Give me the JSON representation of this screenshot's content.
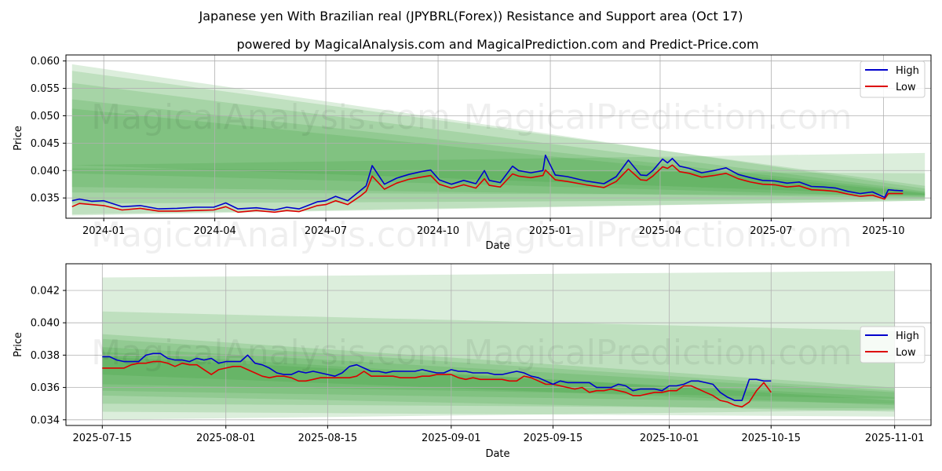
{
  "title": "Japanese yen With Brazilian real (JPYBRL(Forex)) Resistance and Support area (Oct 17)",
  "subtitle": "powered by MagicalAnalysis.com and MagicalPrediction.com and Predict-Price.com",
  "watermarks": [
    "MagicalAnalysis.com",
    "MagicalPrediction.com"
  ],
  "colors": {
    "high": "#0000cc",
    "low": "#dd0000",
    "band": "#2e9a2e"
  },
  "chart_data": [
    {
      "type": "line",
      "name": "full-history",
      "xlabel": "Date",
      "ylabel": "Price",
      "xlim_days": [
        -31,
        678
      ],
      "ylim": [
        0.0313,
        0.0611
      ],
      "x_ticks": [
        {
          "day": 0,
          "label": "2024-01"
        },
        {
          "day": 91,
          "label": "2024-04"
        },
        {
          "day": 182,
          "label": "2024-07"
        },
        {
          "day": 274,
          "label": "2024-10"
        },
        {
          "day": 366,
          "label": "2025-01"
        },
        {
          "day": 456,
          "label": "2025-04"
        },
        {
          "day": 547,
          "label": "2025-07"
        },
        {
          "day": 639,
          "label": "2025-10"
        }
      ],
      "y_ticks": [
        0.035,
        0.04,
        0.045,
        0.05,
        0.055,
        0.06
      ],
      "y_tick_labels": [
        "0.035",
        "0.040",
        "0.045",
        "0.050",
        "0.055",
        "0.060"
      ],
      "legend": [
        "High",
        "Low"
      ],
      "legend_position": "top-right",
      "series": [
        {
          "name": "High",
          "x": [
            -26,
            -20,
            -10,
            0,
            15,
            30,
            45,
            60,
            75,
            90,
            100,
            110,
            125,
            140,
            150,
            160,
            175,
            182,
            190,
            200,
            210,
            215,
            220,
            230,
            240,
            250,
            260,
            268,
            275,
            285,
            295,
            305,
            312,
            316,
            325,
            335,
            340,
            350,
            360,
            362,
            370,
            380,
            395,
            410,
            420,
            430,
            440,
            445,
            450,
            458,
            462,
            466,
            472,
            480,
            490,
            500,
            510,
            520,
            530,
            540,
            550,
            560,
            570,
            580,
            590,
            600,
            610,
            620,
            630,
            640,
            643,
            648,
            655
          ],
          "values": [
            0.0345,
            0.0348,
            0.0344,
            0.0345,
            0.0334,
            0.0336,
            0.033,
            0.0331,
            0.0333,
            0.0333,
            0.0341,
            0.033,
            0.0332,
            0.0328,
            0.0333,
            0.033,
            0.0343,
            0.0345,
            0.0353,
            0.0345,
            0.0363,
            0.0372,
            0.0409,
            0.0375,
            0.0386,
            0.0393,
            0.0398,
            0.0401,
            0.0383,
            0.0375,
            0.0382,
            0.0376,
            0.04,
            0.0382,
            0.0378,
            0.0408,
            0.04,
            0.0396,
            0.04,
            0.0428,
            0.0392,
            0.0389,
            0.0381,
            0.0376,
            0.0389,
            0.0419,
            0.0392,
            0.0391,
            0.04,
            0.0421,
            0.0414,
            0.0422,
            0.0408,
            0.0404,
            0.0396,
            0.04,
            0.0405,
            0.0393,
            0.0387,
            0.0382,
            0.0381,
            0.0377,
            0.0379,
            0.0371,
            0.037,
            0.0368,
            0.0362,
            0.0358,
            0.0361,
            0.0351,
            0.0365,
            0.0364,
            0.0363
          ]
        },
        {
          "name": "Low",
          "x": [
            -26,
            -20,
            -10,
            0,
            15,
            30,
            45,
            60,
            75,
            90,
            100,
            110,
            125,
            140,
            150,
            160,
            175,
            182,
            190,
            200,
            210,
            215,
            220,
            230,
            240,
            250,
            260,
            268,
            275,
            285,
            295,
            305,
            312,
            316,
            325,
            335,
            340,
            350,
            360,
            362,
            370,
            380,
            395,
            410,
            420,
            430,
            440,
            445,
            450,
            458,
            462,
            466,
            472,
            480,
            490,
            500,
            510,
            520,
            530,
            540,
            550,
            560,
            570,
            580,
            590,
            600,
            610,
            620,
            630,
            640,
            643,
            648,
            655
          ],
          "values": [
            0.0334,
            0.034,
            0.0338,
            0.0336,
            0.0328,
            0.0331,
            0.0326,
            0.0326,
            0.0327,
            0.0328,
            0.0334,
            0.0324,
            0.0327,
            0.0324,
            0.0327,
            0.0325,
            0.0336,
            0.0338,
            0.0345,
            0.0338,
            0.0353,
            0.0362,
            0.039,
            0.0366,
            0.0377,
            0.0384,
            0.0388,
            0.0391,
            0.0375,
            0.0368,
            0.0374,
            0.0368,
            0.0385,
            0.0373,
            0.037,
            0.0394,
            0.039,
            0.0387,
            0.0391,
            0.0401,
            0.0383,
            0.038,
            0.0374,
            0.0369,
            0.038,
            0.0403,
            0.0383,
            0.0382,
            0.039,
            0.0407,
            0.0404,
            0.041,
            0.0398,
            0.0395,
            0.0388,
            0.0391,
            0.0395,
            0.0385,
            0.0379,
            0.0375,
            0.0374,
            0.037,
            0.0372,
            0.0365,
            0.0364,
            0.0362,
            0.0357,
            0.0353,
            0.0355,
            0.0348,
            0.0358,
            0.0358,
            0.0358
          ]
        }
      ],
      "bands": [
        {
          "x": [
            -26,
            673
          ],
          "upper": [
            0.0594,
            0.0367
          ],
          "lower": [
            0.041,
            0.0355
          ]
        },
        {
          "x": [
            -26,
            673
          ],
          "upper": [
            0.0582,
            0.0372
          ],
          "lower": [
            0.037,
            0.035
          ]
        },
        {
          "x": [
            -26,
            673
          ],
          "upper": [
            0.056,
            0.0362
          ],
          "lower": [
            0.034,
            0.0347
          ]
        },
        {
          "x": [
            -26,
            673
          ],
          "upper": [
            0.053,
            0.036
          ],
          "lower": [
            0.032,
            0.0345
          ]
        },
        {
          "x": [
            -26,
            673
          ],
          "upper": [
            0.0513,
            0.0358
          ],
          "lower": [
            0.0395,
            0.0352
          ]
        },
        {
          "x": [
            -26,
            673
          ],
          "upper": [
            0.041,
            0.0432
          ],
          "lower": [
            0.0318,
            0.0345
          ]
        },
        {
          "x": [
            -26,
            673
          ],
          "upper": [
            0.0404,
            0.0395
          ],
          "lower": [
            0.036,
            0.0355
          ]
        }
      ]
    },
    {
      "type": "line",
      "name": "recent-zoom",
      "xlabel": "Date",
      "ylabel": "Price",
      "xlim_days": [
        -5,
        114
      ],
      "ylim": [
        0.03365,
        0.04365
      ],
      "x_ticks": [
        {
          "day": 0,
          "label": "2025-07-15"
        },
        {
          "day": 17,
          "label": "2025-08-01"
        },
        {
          "day": 31,
          "label": "2025-08-15"
        },
        {
          "day": 48,
          "label": "2025-09-01"
        },
        {
          "day": 62,
          "label": "2025-09-15"
        },
        {
          "day": 78,
          "label": "2025-10-01"
        },
        {
          "day": 92,
          "label": "2025-10-15"
        },
        {
          "day": 109,
          "label": "2025-11-01"
        }
      ],
      "y_ticks": [
        0.034,
        0.036,
        0.038,
        0.04,
        0.042
      ],
      "y_tick_labels": [
        "0.034",
        "0.036",
        "0.038",
        "0.040",
        "0.042"
      ],
      "legend": [
        "High",
        "Low"
      ],
      "legend_position": "center-right",
      "series": [
        {
          "name": "High",
          "x": [
            0,
            1,
            2,
            3,
            4,
            5,
            6,
            7,
            8,
            9,
            10,
            11,
            12,
            13,
            14,
            15,
            16,
            17,
            18,
            19,
            20,
            21,
            22,
            23,
            24,
            25,
            26,
            27,
            28,
            29,
            30,
            31,
            32,
            33,
            34,
            35,
            36,
            37,
            38,
            39,
            40,
            41,
            42,
            43,
            44,
            45,
            46,
            47,
            48,
            49,
            50,
            51,
            52,
            53,
            54,
            55,
            56,
            57,
            58,
            59,
            60,
            61,
            62,
            63,
            64,
            65,
            66,
            67,
            68,
            69,
            70,
            71,
            72,
            73,
            74,
            75,
            76,
            77,
            78,
            79,
            80,
            81,
            82,
            83,
            84,
            85,
            86,
            87,
            88,
            89,
            90,
            91,
            92
          ],
          "values": [
            0.0379,
            0.0379,
            0.0377,
            0.0376,
            0.0376,
            0.0376,
            0.038,
            0.0381,
            0.0381,
            0.0378,
            0.0377,
            0.0377,
            0.0376,
            0.0378,
            0.0377,
            0.0378,
            0.0375,
            0.0376,
            0.0376,
            0.0376,
            0.038,
            0.0375,
            0.0374,
            0.0372,
            0.0369,
            0.0368,
            0.0368,
            0.037,
            0.0369,
            0.037,
            0.0369,
            0.0368,
            0.0367,
            0.0369,
            0.0373,
            0.0374,
            0.0372,
            0.037,
            0.037,
            0.0369,
            0.037,
            0.037,
            0.037,
            0.037,
            0.0371,
            0.037,
            0.0369,
            0.0369,
            0.0371,
            0.037,
            0.037,
            0.0369,
            0.0369,
            0.0369,
            0.0368,
            0.0368,
            0.0369,
            0.037,
            0.0369,
            0.0367,
            0.0366,
            0.0364,
            0.0362,
            0.0364,
            0.0363,
            0.0363,
            0.0363,
            0.0363,
            0.036,
            0.036,
            0.036,
            0.0362,
            0.0361,
            0.0358,
            0.0359,
            0.0359,
            0.0359,
            0.0358,
            0.0361,
            0.0361,
            0.0362,
            0.0364,
            0.0364,
            0.0363,
            0.0362,
            0.0357,
            0.0354,
            0.0352,
            0.0352,
            0.0365,
            0.0365,
            0.0364,
            0.0364
          ]
        },
        {
          "name": "Low",
          "x": [
            0,
            1,
            2,
            3,
            4,
            5,
            6,
            7,
            8,
            9,
            10,
            11,
            12,
            13,
            14,
            15,
            16,
            17,
            18,
            19,
            20,
            21,
            22,
            23,
            24,
            25,
            26,
            27,
            28,
            29,
            30,
            31,
            32,
            33,
            34,
            35,
            36,
            37,
            38,
            39,
            40,
            41,
            42,
            43,
            44,
            45,
            46,
            47,
            48,
            49,
            50,
            51,
            52,
            53,
            54,
            55,
            56,
            57,
            58,
            59,
            60,
            61,
            62,
            63,
            64,
            65,
            66,
            67,
            68,
            69,
            70,
            71,
            72,
            73,
            74,
            75,
            76,
            77,
            78,
            79,
            80,
            81,
            82,
            83,
            84,
            85,
            86,
            87,
            88,
            89,
            90,
            91,
            92
          ],
          "values": [
            0.0372,
            0.0372,
            0.0372,
            0.0372,
            0.0374,
            0.0375,
            0.0375,
            0.0376,
            0.0376,
            0.0375,
            0.0373,
            0.0375,
            0.0374,
            0.0374,
            0.0371,
            0.0368,
            0.0371,
            0.0372,
            0.0373,
            0.0373,
            0.0371,
            0.0369,
            0.0367,
            0.0366,
            0.0367,
            0.0367,
            0.0366,
            0.0364,
            0.0364,
            0.0365,
            0.0366,
            0.0366,
            0.0366,
            0.0366,
            0.0366,
            0.0367,
            0.037,
            0.0367,
            0.0367,
            0.0367,
            0.0367,
            0.0366,
            0.0366,
            0.0366,
            0.0367,
            0.0367,
            0.0368,
            0.0368,
            0.0368,
            0.0366,
            0.0365,
            0.0366,
            0.0365,
            0.0365,
            0.0365,
            0.0365,
            0.0364,
            0.0364,
            0.0367,
            0.0366,
            0.0364,
            0.0362,
            0.0362,
            0.0361,
            0.036,
            0.0359,
            0.036,
            0.0357,
            0.0358,
            0.0358,
            0.0359,
            0.0358,
            0.0357,
            0.0355,
            0.0355,
            0.0356,
            0.0357,
            0.0357,
            0.0358,
            0.0358,
            0.0361,
            0.0361,
            0.0359,
            0.0357,
            0.0355,
            0.0352,
            0.0351,
            0.0349,
            0.0348,
            0.0351,
            0.0358,
            0.0363,
            0.0357
          ]
        }
      ],
      "bands": [
        {
          "x": [
            0,
            109
          ],
          "upper": [
            0.0428,
            0.0432
          ],
          "lower": [
            0.034,
            0.0346
          ]
        },
        {
          "x": [
            0,
            109
          ],
          "upper": [
            0.0407,
            0.0395
          ],
          "lower": [
            0.0345,
            0.0342
          ]
        },
        {
          "x": [
            0,
            109
          ],
          "upper": [
            0.0393,
            0.036
          ],
          "lower": [
            0.035,
            0.0347
          ]
        },
        {
          "x": [
            0,
            109
          ],
          "upper": [
            0.039,
            0.0358
          ],
          "lower": [
            0.0358,
            0.035
          ]
        },
        {
          "x": [
            0,
            109
          ],
          "upper": [
            0.0385,
            0.0357
          ],
          "lower": [
            0.0362,
            0.0353
          ]
        },
        {
          "x": [
            0,
            109
          ],
          "upper": [
            0.0382,
            0.0352
          ],
          "lower": [
            0.0355,
            0.0345
          ]
        },
        {
          "x": [
            0,
            109
          ],
          "upper": [
            0.0379,
            0.0354
          ],
          "lower": [
            0.0368,
            0.0349
          ]
        }
      ]
    }
  ]
}
